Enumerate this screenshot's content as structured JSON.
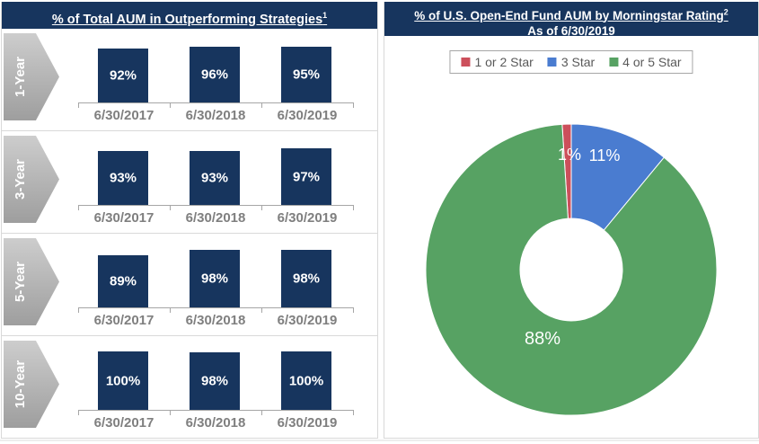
{
  "left_panel": {
    "title": "% of Total AUM in Outperforming Strategies",
    "title_superscript": "1"
  },
  "right_panel": {
    "title": "% of U.S. Open-End Fund AUM by Morningstar Rating",
    "title_superscript": "2",
    "subtitle": "As of 6/30/2019"
  },
  "chart_data": [
    {
      "type": "bar",
      "title": "% of Total AUM in Outperforming Strategies¹",
      "layout": "small-multiples: one mini bar chart per period row",
      "categories": [
        "6/30/2017",
        "6/30/2018",
        "6/30/2019"
      ],
      "series": [
        {
          "name": "1-Year",
          "values": [
            92,
            96,
            95
          ]
        },
        {
          "name": "3-Year",
          "values": [
            93,
            93,
            97
          ]
        },
        {
          "name": "5-Year",
          "values": [
            89,
            98,
            98
          ]
        },
        {
          "name": "10-Year",
          "values": [
            100,
            98,
            100
          ]
        }
      ],
      "unit": "%",
      "ylim": [
        0,
        100
      ],
      "grid": false,
      "bar_color": "#17355E"
    },
    {
      "type": "pie",
      "subtype": "donut",
      "title": "% of U.S. Open-End Fund AUM by Morningstar Rating²",
      "subtitle": "As of 6/30/2019",
      "labels": [
        "1 or 2 Star",
        "3 Star",
        "4 or 5 Star"
      ],
      "values": [
        1,
        11,
        88
      ],
      "value_labels": [
        "1%",
        "11%",
        "88%"
      ],
      "colors": [
        "#CC4F5B",
        "#4A7CD0",
        "#57A263"
      ],
      "legend_position": "top",
      "start_angle_deg": -3.6,
      "direction": "clockwise"
    }
  ],
  "colors": {
    "header_background": "#17355E",
    "bar_fill": "#17355E",
    "axis_gray": "#A6A6A6",
    "category_label_gray": "#7F7F7F",
    "separator_gray": "#D9D9D9",
    "legend_text": "#595959",
    "donut_red": "#CC4F5B",
    "donut_blue": "#4A7CD0",
    "donut_green": "#57A263",
    "arrow_gray_top": "#CDCDCD",
    "arrow_gray_bottom": "#9E9E9E"
  }
}
